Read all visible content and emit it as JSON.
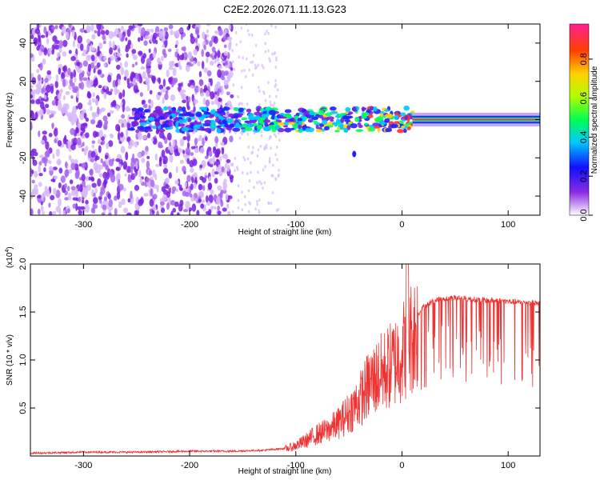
{
  "figure_title": "C2E2.2026.071.11.13.G23",
  "chart_data": [
    {
      "type": "heatmap",
      "title": "C2E2.2026.071.11.13.G23",
      "xlabel": "Height of straight line (km)",
      "ylabel": "Frequency (Hz)",
      "xlim": [
        -350,
        130
      ],
      "ylim": [
        -50,
        50
      ],
      "xticks": [
        -300,
        -200,
        -100,
        0,
        100
      ],
      "xtick_labels": [
        "-300",
        "-200",
        "-100",
        "0",
        "100"
      ],
      "yticks": [
        -40,
        -20,
        0,
        20,
        40
      ],
      "ytick_labels": [
        "-40",
        "-20",
        "0",
        "20",
        "40"
      ],
      "colorbar": {
        "label": "Normalized spectral amplitude",
        "range": [
          0,
          0.98
        ],
        "ticks": [
          0.0,
          0.2,
          0.4,
          0.6,
          0.8
        ],
        "tick_labels": [
          "0.0",
          "0.2",
          "0.4",
          "0.6",
          "0.8"
        ]
      },
      "features": {
        "noise_region_x": [
          -350,
          -160
        ],
        "sparse_noise_region_x": [
          -160,
          -115
        ],
        "signal_band_center_hz": 0,
        "signal_band_start_x": -255,
        "steady_band_start_x": 10,
        "steady_band_halfwidth_hz": 2
      }
    },
    {
      "type": "line",
      "xlabel": "Height of straight line (km)",
      "ylabel": "SNR (10 * v/v)",
      "y_multiplier": "(x10^4)",
      "y_multiplier_base": "(x10",
      "y_multiplier_exp": "4",
      "xlim": [
        -350,
        130
      ],
      "ylim": [
        0,
        2.0
      ],
      "xticks": [
        -300,
        -200,
        -100,
        0,
        100
      ],
      "xtick_labels": [
        "-300",
        "-200",
        "-100",
        "0",
        "100"
      ],
      "yticks": [
        0.5,
        1.0,
        1.5,
        2.0
      ],
      "ytick_labels": [
        "0.5",
        "1.0",
        "1.5",
        "2.0"
      ],
      "series": [
        {
          "name": "SNR",
          "color": "#ee3333",
          "x": [
            -350,
            -300,
            -250,
            -200,
            -160,
            -130,
            -110,
            -100,
            -90,
            -80,
            -70,
            -60,
            -50,
            -40,
            -30,
            -20,
            -10,
            0,
            10,
            20,
            30,
            40,
            50,
            60,
            70,
            80,
            90,
            100,
            110,
            120,
            130
          ],
          "y": [
            0.03,
            0.04,
            0.04,
            0.05,
            0.05,
            0.06,
            0.08,
            0.12,
            0.18,
            0.25,
            0.3,
            0.38,
            0.5,
            0.65,
            0.85,
            0.95,
            1.05,
            1.2,
            1.4,
            1.55,
            1.62,
            1.64,
            1.65,
            1.64,
            1.63,
            1.62,
            1.62,
            1.61,
            1.6,
            1.6,
            1.59
          ]
        }
      ]
    }
  ]
}
